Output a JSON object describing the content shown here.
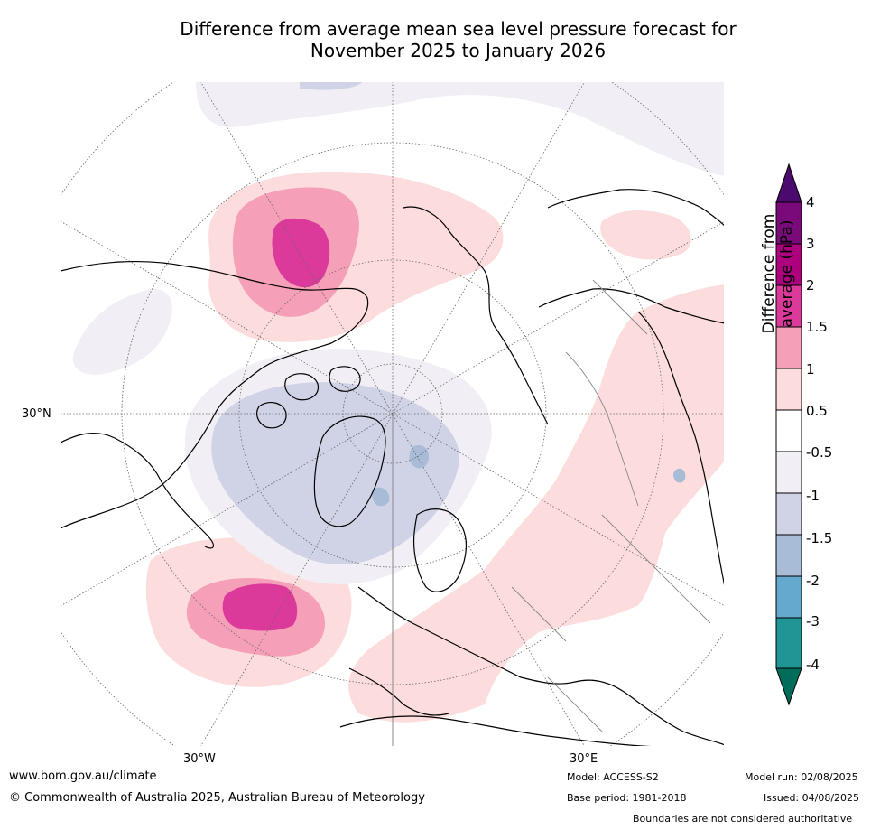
{
  "title_line1": "Difference from average mean sea level pressure forecast for",
  "title_line2": "November 2025 to January 2026",
  "lat_labels": {
    "lat30n": "30°N",
    "lon30w": "30°W",
    "lon30e": "30°E"
  },
  "colorbar": {
    "title": "Difference from average (hPa)",
    "ticks": [
      "4",
      "3",
      "2",
      "1.5",
      "1",
      "0.5",
      "-0.5",
      "-1",
      "-1.5",
      "-2",
      "-3",
      "-4"
    ],
    "colors": {
      "gt4": "#4b0a6e",
      "3to4": "#7a0a7a",
      "2to3": "#ad007e",
      "1.5to2": "#dc3a9b",
      "1to1.5": "#f5a0b8",
      "0.5to1": "#fcdcdc",
      "-0.5to0.5": "#ffffff",
      "-1to-0.5": "#f2eef5",
      "-1.5to-1": "#d0d2e6",
      "-2to-1.5": "#a8bcd8",
      "-3to-2": "#66a9cf",
      "-4to-3": "#1f9595",
      "lt-4": "#016c59"
    }
  },
  "footer": {
    "website": "www.bom.gov.au/climate",
    "copyright": "© Commonwealth of Australia 2025, Australian Bureau of Meteorology",
    "model": "Model: ACCESS-S2",
    "base_period": "Base period: 1981-2018",
    "model_run": "Model run: 02/08/2025",
    "issued": "Issued: 04/08/2025",
    "boundaries": "Boundaries are not considered authoritative"
  }
}
